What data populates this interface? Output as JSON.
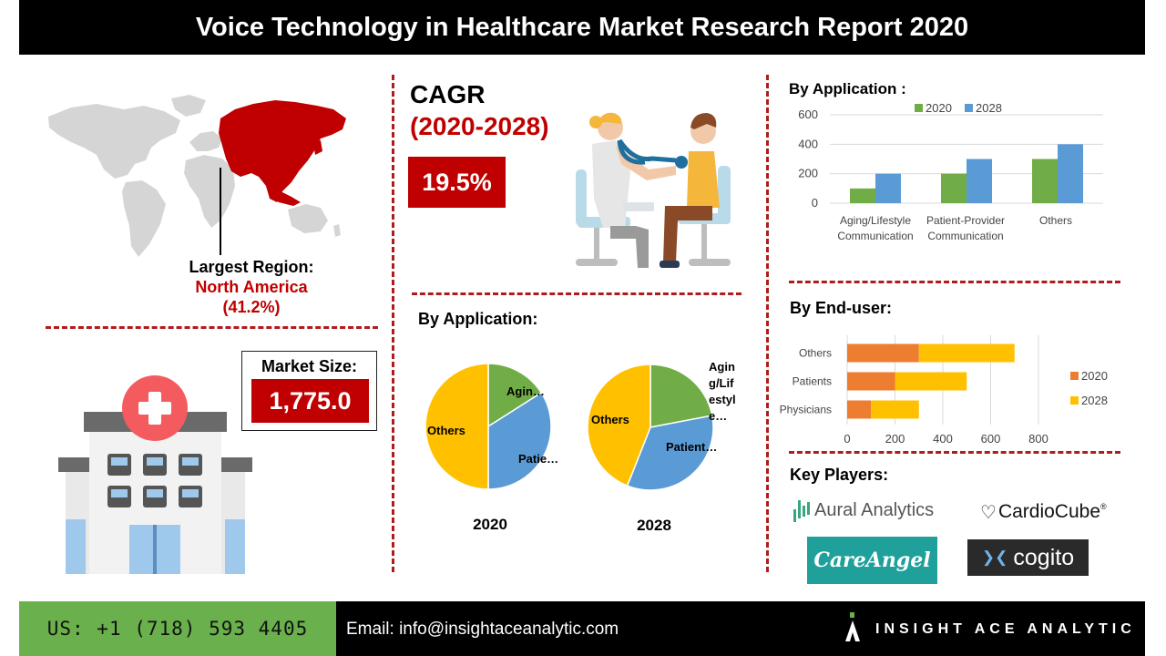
{
  "title": "Voice Technology in Healthcare Market Research Report 2020",
  "region": {
    "label": "Largest Region:",
    "name": "North America",
    "share": "(41.2%)"
  },
  "market": {
    "label": "Market Size:",
    "value": "1,775.0"
  },
  "cagr": {
    "label": "CAGR",
    "period": "(2020-2028)",
    "value": "19.5%"
  },
  "pies": {
    "heading": "By Application:",
    "year_2020": "2020",
    "year_2028": "2028",
    "lbl_2020_agin": "Agin…",
    "lbl_2020_patie": "Patie…",
    "lbl_2020_others": "Others",
    "lbl_2028_others": "Others",
    "lbl_2028_patient": "Patient…",
    "lbl_2028_aging_lines": [
      "Agin",
      "g/Lif",
      "estyl",
      "e…"
    ]
  },
  "bar_chart": {
    "heading": "By Application :",
    "legend_2020": "2020",
    "legend_2028": "2028",
    "cat1_line1": "Aging/Lifestyle",
    "cat1_line2": "Communication",
    "cat2_line1": "Patient-Provider",
    "cat2_line2": "Communication",
    "cat3_line1": "Others"
  },
  "hbar_chart": {
    "heading": "By End-user:",
    "legend_2020": "2020",
    "legend_2028": "2028"
  },
  "key_players": {
    "heading": "Key Players:",
    "aural": "Aural Analytics",
    "cardio": "CardioCube",
    "reg": "®",
    "careangel": "CareAngel",
    "cogito": "cogito"
  },
  "footer": {
    "phone": "US: +1 (718) 593 4405",
    "email": "Email: info@insightaceanalytic.com",
    "brand": "INSIGHT ACE ANALYTIC"
  },
  "colors": {
    "red": "#c00000",
    "green": "#70ad47",
    "blue": "#5b9bd5",
    "yellow": "#ffc000",
    "orange": "#ed7d31"
  },
  "chart_data": [
    {
      "type": "bar",
      "title": "By Application :",
      "categories": [
        "Aging/Lifestyle Communication",
        "Patient-Provider Communication",
        "Others"
      ],
      "series": [
        {
          "name": "2020",
          "values": [
            100,
            200,
            300
          ]
        },
        {
          "name": "2028",
          "values": [
            200,
            300,
            400
          ]
        }
      ],
      "ylim": [
        0,
        600
      ],
      "yticks": [
        0,
        200,
        400,
        600
      ],
      "legend": "top",
      "grid": true
    },
    {
      "type": "bar",
      "orientation": "horizontal",
      "stacked": true,
      "title": "By End-user:",
      "categories": [
        "Physicians",
        "Patients",
        "Others"
      ],
      "series": [
        {
          "name": "2020",
          "values": [
            100,
            200,
            300
          ]
        },
        {
          "name": "2028",
          "values": [
            200,
            300,
            400
          ]
        }
      ],
      "xlim": [
        0,
        800
      ],
      "xticks": [
        0,
        200,
        400,
        600,
        800
      ],
      "legend": "right"
    },
    {
      "type": "pie",
      "title": "2020",
      "labels": [
        "Aging/Lifestyle Communication",
        "Patient-Provider Communication",
        "Others"
      ],
      "values": [
        16,
        34,
        50
      ]
    },
    {
      "type": "pie",
      "title": "2028",
      "labels": [
        "Aging/Lifestyle Communication",
        "Patient-Provider Communication",
        "Others"
      ],
      "values": [
        22,
        34,
        44
      ]
    }
  ]
}
